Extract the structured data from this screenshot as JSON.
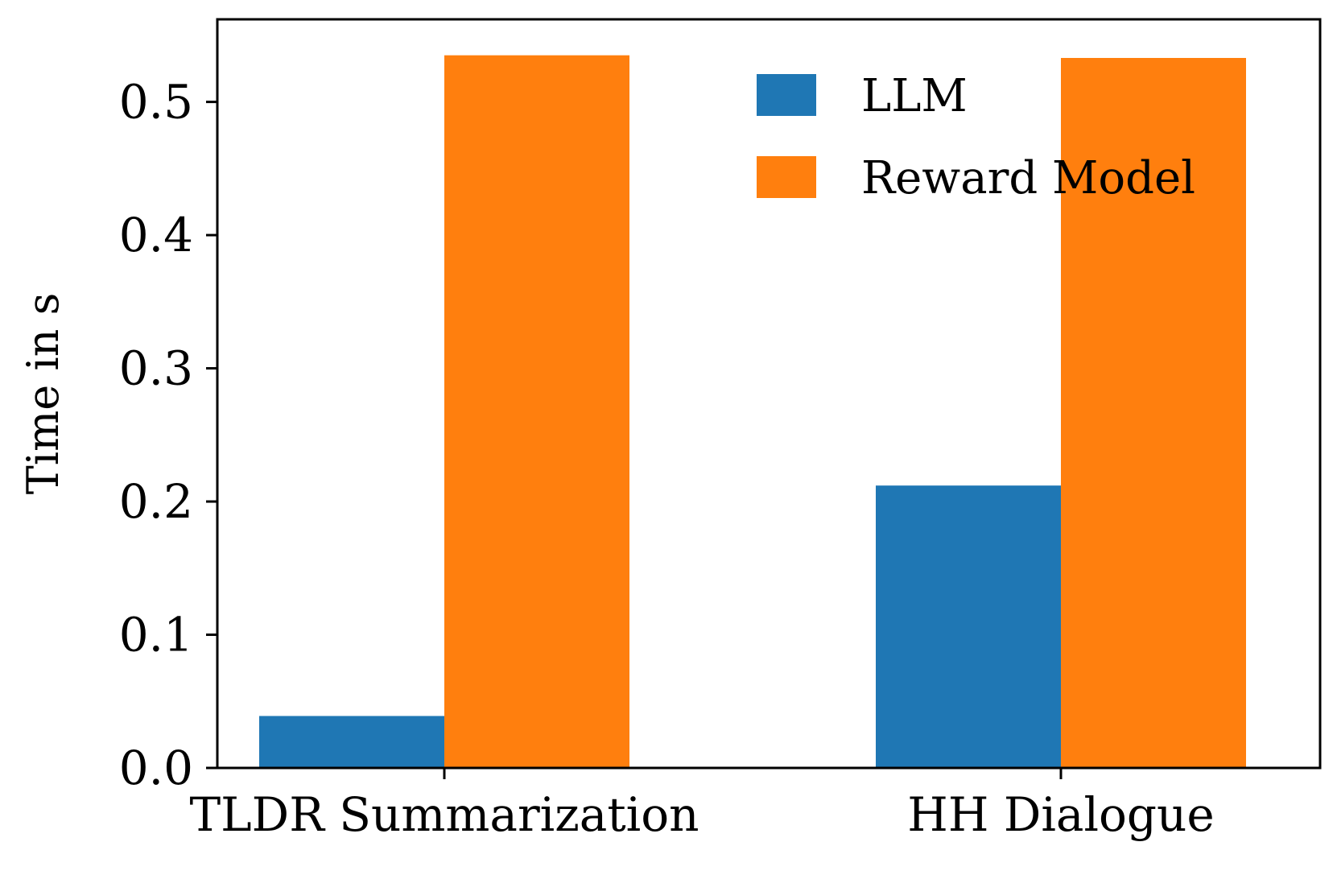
{
  "chart_data": {
    "type": "bar",
    "title": "",
    "xlabel": "",
    "ylabel": "Time in s",
    "ylim": [
      0,
      0.562
    ],
    "yticks": [
      "0.0",
      "0.1",
      "0.2",
      "0.3",
      "0.4",
      "0.5"
    ],
    "categories": [
      "TLDR Summarization",
      "HH Dialogue"
    ],
    "series": [
      {
        "name": "LLM",
        "values": [
          0.039,
          0.212
        ],
        "color": "#1f77b4"
      },
      {
        "name": "Reward Model",
        "values": [
          0.535,
          0.533
        ],
        "color": "#ff7f0e"
      }
    ],
    "legend_position": "top-right",
    "grid": false
  }
}
